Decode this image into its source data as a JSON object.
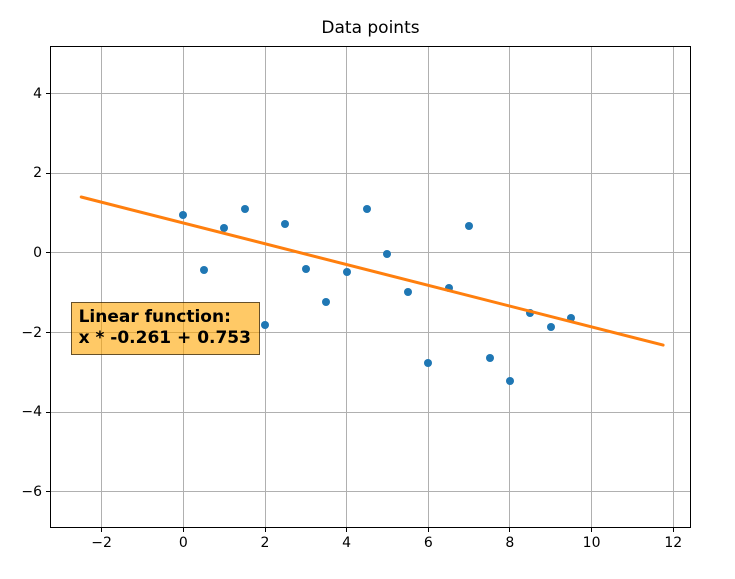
{
  "chart_data": {
    "type": "scatter",
    "title": "Data points",
    "xlabel": "",
    "ylabel": "",
    "xlim": [
      -3.24,
      12.41
    ],
    "ylim": [
      -6.88,
      5.17
    ],
    "grid": true,
    "legend_position": "none",
    "x_ticks": [
      {
        "v": -2,
        "label": "−2"
      },
      {
        "v": 0,
        "label": "0"
      },
      {
        "v": 2,
        "label": "2"
      },
      {
        "v": 4,
        "label": "4"
      },
      {
        "v": 6,
        "label": "6"
      },
      {
        "v": 8,
        "label": "8"
      },
      {
        "v": 10,
        "label": "10"
      },
      {
        "v": 12,
        "label": "12"
      }
    ],
    "y_ticks": [
      {
        "v": 4,
        "label": "4"
      },
      {
        "v": 2,
        "label": "2"
      },
      {
        "v": 0,
        "label": "0"
      },
      {
        "v": -2,
        "label": "−2"
      },
      {
        "v": -4,
        "label": "−4"
      },
      {
        "v": -6,
        "label": "−6"
      }
    ],
    "series": [
      {
        "name": "data points",
        "type": "scatter",
        "color": "#1f77b4",
        "marker": "circle",
        "points": [
          [
            0,
            0.95
          ],
          [
            0.5,
            -0.42
          ],
          [
            1,
            0.62
          ],
          [
            1.5,
            1.1
          ],
          [
            2,
            -1.8
          ],
          [
            2.5,
            0.73
          ],
          [
            3,
            -0.4
          ],
          [
            3.5,
            -1.22
          ],
          [
            4,
            -0.47
          ],
          [
            4.5,
            1.1
          ],
          [
            5,
            -0.02
          ],
          [
            5.5,
            -0.99
          ],
          [
            6,
            -2.75
          ],
          [
            6.5,
            -0.89
          ],
          [
            7,
            0.67
          ],
          [
            7.5,
            -2.63
          ],
          [
            8,
            -3.22
          ],
          [
            8.5,
            -1.5
          ],
          [
            9,
            -1.87
          ],
          [
            9.5,
            -1.64
          ]
        ]
      },
      {
        "name": "linear fit",
        "type": "line",
        "color": "#ff7f0e",
        "slope": -0.261,
        "intercept": 0.753,
        "x_start": -2.5,
        "x_end": 11.75
      }
    ],
    "annotation": {
      "line1": "Linear function:",
      "line2": "x * -0.261 + 0.753",
      "anchor": {
        "x": -2.76,
        "y": -1.24
      },
      "bg_color": "rgba(255,165,0,0.6)",
      "border_color": "rgba(0,0,0,0.6)",
      "text_color": "#000000"
    },
    "colors": {
      "scatter": "#1f77b4",
      "line": "#ff7f0e",
      "grid": "#b0b0b0",
      "spine": "#000000",
      "background": "#ffffff"
    }
  }
}
